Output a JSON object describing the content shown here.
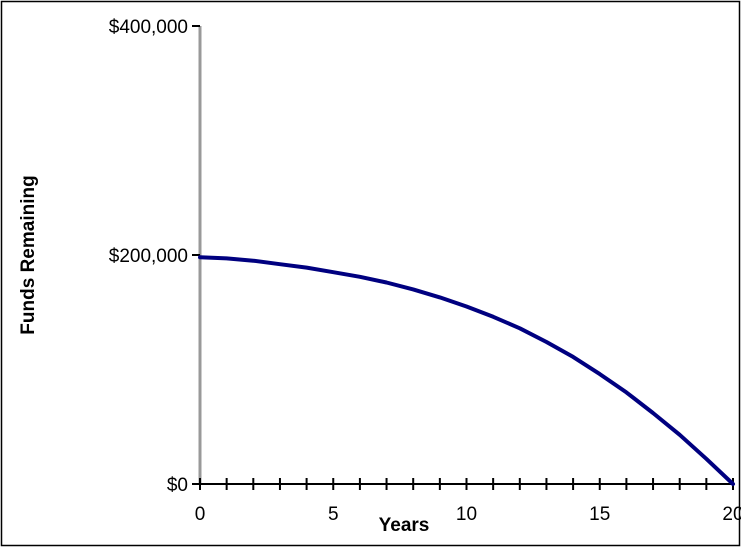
{
  "chart_data": {
    "type": "line",
    "xlabel": "Years",
    "ylabel": "Funds Remaining",
    "xlim": [
      0,
      20
    ],
    "ylim": [
      0,
      400000
    ],
    "x_ticks": [
      0,
      5,
      10,
      15,
      20
    ],
    "x_tick_labels": [
      "0",
      "5",
      "10",
      "15",
      "20"
    ],
    "y_ticks": [
      0,
      200000,
      400000
    ],
    "y_tick_labels": [
      "$0",
      "$200,000",
      "$400,000"
    ],
    "grid": false,
    "legend": "none",
    "series": [
      {
        "color": "#000080",
        "x": [
          0,
          1,
          2,
          3,
          4,
          5,
          6,
          7,
          8,
          9,
          10,
          11,
          12,
          13,
          14,
          15,
          16,
          17,
          18,
          19,
          20
        ],
        "y": [
          198000,
          197000,
          195000,
          192000,
          189000,
          185000,
          181000,
          176000,
          170000,
          163000,
          155000,
          146000,
          136000,
          124000,
          111000,
          96000,
          80000,
          62000,
          43000,
          22000,
          0
        ]
      }
    ]
  }
}
